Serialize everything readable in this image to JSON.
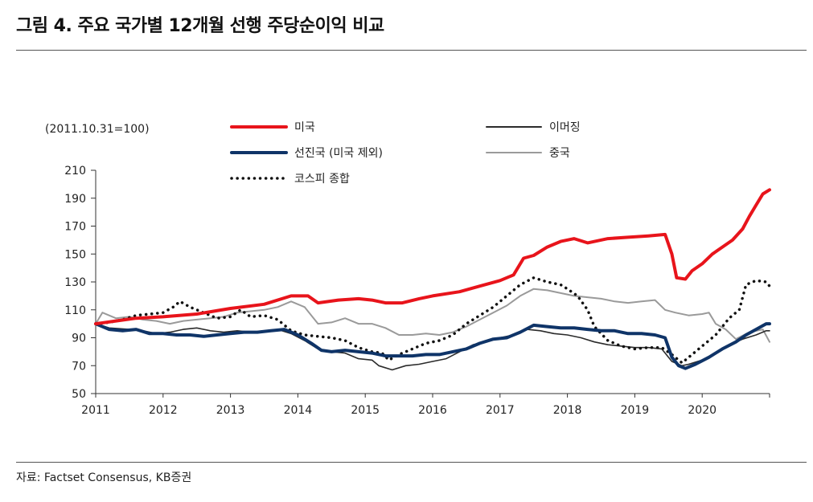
{
  "header": {
    "title": "그림 4. 주요 국가별 12개월 선행 주당순이익 비교"
  },
  "footer": {
    "source": "자료: Factset Consensus, KB증권"
  },
  "chart_data": {
    "type": "line",
    "unit_note": "(2011.10.31=100)",
    "ylim": [
      50,
      210
    ],
    "yticks": [
      50,
      70,
      90,
      110,
      130,
      150,
      170,
      190,
      210
    ],
    "xlim": [
      2011,
      2021
    ],
    "xticks": [
      "2011",
      "2012",
      "2013",
      "2014",
      "2015",
      "2016",
      "2017",
      "2018",
      "2019",
      "2020"
    ],
    "series": [
      {
        "name": "미국",
        "color": "#e8141b",
        "style": "solid",
        "width": 4,
        "points": [
          [
            2011.0,
            100
          ],
          [
            2011.3,
            102
          ],
          [
            2011.6,
            104
          ],
          [
            2012.0,
            105
          ],
          [
            2012.5,
            107
          ],
          [
            2013.0,
            111
          ],
          [
            2013.5,
            114
          ],
          [
            2013.9,
            120
          ],
          [
            2014.15,
            120
          ],
          [
            2014.3,
            115
          ],
          [
            2014.6,
            117
          ],
          [
            2014.9,
            118
          ],
          [
            2015.1,
            117
          ],
          [
            2015.3,
            115
          ],
          [
            2015.55,
            115
          ],
          [
            2015.8,
            118
          ],
          [
            2016.0,
            120
          ],
          [
            2016.4,
            123
          ],
          [
            2016.7,
            127
          ],
          [
            2017.0,
            131
          ],
          [
            2017.2,
            135
          ],
          [
            2017.35,
            147
          ],
          [
            2017.5,
            149
          ],
          [
            2017.7,
            155
          ],
          [
            2017.9,
            159
          ],
          [
            2018.1,
            161
          ],
          [
            2018.3,
            158
          ],
          [
            2018.6,
            161
          ],
          [
            2018.9,
            162
          ],
          [
            2019.2,
            163
          ],
          [
            2019.45,
            164
          ],
          [
            2019.55,
            150
          ],
          [
            2019.62,
            133
          ],
          [
            2019.75,
            132
          ],
          [
            2019.85,
            138
          ],
          [
            2020.0,
            143
          ],
          [
            2020.15,
            150
          ],
          [
            2020.3,
            155
          ],
          [
            2020.45,
            160
          ],
          [
            2020.6,
            168
          ],
          [
            2020.7,
            177
          ],
          [
            2020.8,
            185
          ],
          [
            2020.9,
            193
          ],
          [
            2021.0,
            196
          ]
        ]
      },
      {
        "name": "이머징",
        "color": "#2b2b2b",
        "style": "solid",
        "width": 1.6,
        "points": [
          [
            2011.0,
            100
          ],
          [
            2011.2,
            97
          ],
          [
            2011.5,
            96
          ],
          [
            2011.7,
            95
          ],
          [
            2011.9,
            93
          ],
          [
            2012.1,
            94
          ],
          [
            2012.3,
            96
          ],
          [
            2012.5,
            97
          ],
          [
            2012.7,
            95
          ],
          [
            2012.9,
            94
          ],
          [
            2013.1,
            95
          ],
          [
            2013.3,
            94
          ],
          [
            2013.5,
            95
          ],
          [
            2013.7,
            96
          ],
          [
            2013.9,
            93
          ],
          [
            2014.1,
            88
          ],
          [
            2014.3,
            82
          ],
          [
            2014.5,
            80
          ],
          [
            2014.7,
            79
          ],
          [
            2014.9,
            75
          ],
          [
            2015.1,
            74
          ],
          [
            2015.2,
            70
          ],
          [
            2015.4,
            67
          ],
          [
            2015.6,
            70
          ],
          [
            2015.8,
            71
          ],
          [
            2016.0,
            73
          ],
          [
            2016.2,
            75
          ],
          [
            2016.4,
            80
          ],
          [
            2016.6,
            85
          ],
          [
            2016.8,
            87
          ],
          [
            2017.0,
            90
          ],
          [
            2017.2,
            92
          ],
          [
            2017.4,
            96
          ],
          [
            2017.6,
            95
          ],
          [
            2017.8,
            93
          ],
          [
            2018.0,
            92
          ],
          [
            2018.2,
            90
          ],
          [
            2018.4,
            87
          ],
          [
            2018.6,
            85
          ],
          [
            2018.8,
            84
          ],
          [
            2019.0,
            83
          ],
          [
            2019.2,
            83
          ],
          [
            2019.4,
            82
          ],
          [
            2019.55,
            73
          ],
          [
            2019.7,
            70
          ],
          [
            2019.8,
            71
          ],
          [
            2020.0,
            74
          ],
          [
            2020.2,
            79
          ],
          [
            2020.4,
            85
          ],
          [
            2020.6,
            89
          ],
          [
            2020.8,
            92
          ],
          [
            2020.95,
            95
          ],
          [
            2021.0,
            95
          ]
        ]
      },
      {
        "name": "선진국 (미국 제외)",
        "color": "#0f3468",
        "style": "solid",
        "width": 4,
        "points": [
          [
            2011.0,
            100
          ],
          [
            2011.2,
            96
          ],
          [
            2011.4,
            95
          ],
          [
            2011.6,
            96
          ],
          [
            2011.8,
            93
          ],
          [
            2012.0,
            93
          ],
          [
            2012.2,
            92
          ],
          [
            2012.4,
            92
          ],
          [
            2012.6,
            91
          ],
          [
            2012.8,
            92
          ],
          [
            2013.0,
            93
          ],
          [
            2013.2,
            94
          ],
          [
            2013.4,
            94
          ],
          [
            2013.6,
            95
          ],
          [
            2013.8,
            96
          ],
          [
            2014.0,
            92
          ],
          [
            2014.2,
            86
          ],
          [
            2014.35,
            81
          ],
          [
            2014.5,
            80
          ],
          [
            2014.7,
            81
          ],
          [
            2014.9,
            80
          ],
          [
            2015.1,
            79
          ],
          [
            2015.3,
            77
          ],
          [
            2015.5,
            77
          ],
          [
            2015.7,
            77
          ],
          [
            2015.9,
            78
          ],
          [
            2016.1,
            78
          ],
          [
            2016.3,
            80
          ],
          [
            2016.5,
            82
          ],
          [
            2016.7,
            86
          ],
          [
            2016.9,
            89
          ],
          [
            2017.1,
            90
          ],
          [
            2017.3,
            94
          ],
          [
            2017.5,
            99
          ],
          [
            2017.7,
            98
          ],
          [
            2017.9,
            97
          ],
          [
            2018.1,
            97
          ],
          [
            2018.3,
            96
          ],
          [
            2018.5,
            95
          ],
          [
            2018.7,
            95
          ],
          [
            2018.9,
            93
          ],
          [
            2019.1,
            93
          ],
          [
            2019.3,
            92
          ],
          [
            2019.45,
            90
          ],
          [
            2019.55,
            76
          ],
          [
            2019.65,
            70
          ],
          [
            2019.75,
            68
          ],
          [
            2019.9,
            71
          ],
          [
            2020.1,
            76
          ],
          [
            2020.3,
            82
          ],
          [
            2020.5,
            87
          ],
          [
            2020.65,
            92
          ],
          [
            2020.8,
            96
          ],
          [
            2020.95,
            100
          ],
          [
            2021.0,
            100
          ]
        ]
      },
      {
        "name": "중국",
        "color": "#9a9a9a",
        "style": "solid",
        "width": 2,
        "points": [
          [
            2011.0,
            100
          ],
          [
            2011.1,
            108
          ],
          [
            2011.3,
            104
          ],
          [
            2011.5,
            105
          ],
          [
            2011.7,
            103
          ],
          [
            2011.9,
            102
          ],
          [
            2012.1,
            100
          ],
          [
            2012.3,
            102
          ],
          [
            2012.5,
            103
          ],
          [
            2012.7,
            104
          ],
          [
            2012.9,
            105
          ],
          [
            2013.1,
            108
          ],
          [
            2013.3,
            109
          ],
          [
            2013.5,
            110
          ],
          [
            2013.7,
            112
          ],
          [
            2013.9,
            116
          ],
          [
            2014.1,
            112
          ],
          [
            2014.3,
            100
          ],
          [
            2014.5,
            101
          ],
          [
            2014.7,
            104
          ],
          [
            2014.9,
            100
          ],
          [
            2015.1,
            100
          ],
          [
            2015.3,
            97
          ],
          [
            2015.5,
            92
          ],
          [
            2015.7,
            92
          ],
          [
            2015.9,
            93
          ],
          [
            2016.1,
            92
          ],
          [
            2016.3,
            94
          ],
          [
            2016.5,
            98
          ],
          [
            2016.7,
            103
          ],
          [
            2016.9,
            108
          ],
          [
            2017.1,
            113
          ],
          [
            2017.3,
            120
          ],
          [
            2017.5,
            125
          ],
          [
            2017.7,
            124
          ],
          [
            2017.9,
            122
          ],
          [
            2018.1,
            120
          ],
          [
            2018.3,
            119
          ],
          [
            2018.5,
            118
          ],
          [
            2018.7,
            116
          ],
          [
            2018.9,
            115
          ],
          [
            2019.1,
            116
          ],
          [
            2019.3,
            117
          ],
          [
            2019.45,
            110
          ],
          [
            2019.6,
            108
          ],
          [
            2019.8,
            106
          ],
          [
            2020.0,
            107
          ],
          [
            2020.1,
            108
          ],
          [
            2020.2,
            100
          ],
          [
            2020.35,
            96
          ],
          [
            2020.5,
            89
          ],
          [
            2020.7,
            94
          ],
          [
            2020.9,
            96
          ],
          [
            2021.0,
            87
          ]
        ]
      },
      {
        "name": "코스피 종합",
        "color": "#111111",
        "style": "dotted",
        "width": 3.5,
        "points": [
          [
            2011.0,
            100
          ],
          [
            2011.2,
            101
          ],
          [
            2011.4,
            103
          ],
          [
            2011.6,
            106
          ],
          [
            2011.8,
            107
          ],
          [
            2012.0,
            108
          ],
          [
            2012.15,
            112
          ],
          [
            2012.25,
            116
          ],
          [
            2012.4,
            112
          ],
          [
            2012.6,
            108
          ],
          [
            2012.8,
            104
          ],
          [
            2013.0,
            105
          ],
          [
            2013.15,
            110
          ],
          [
            2013.3,
            105
          ],
          [
            2013.5,
            106
          ],
          [
            2013.7,
            103
          ],
          [
            2013.9,
            95
          ],
          [
            2014.1,
            92
          ],
          [
            2014.3,
            91
          ],
          [
            2014.5,
            90
          ],
          [
            2014.7,
            88
          ],
          [
            2014.9,
            83
          ],
          [
            2015.1,
            80
          ],
          [
            2015.25,
            79
          ],
          [
            2015.35,
            74
          ],
          [
            2015.5,
            78
          ],
          [
            2015.7,
            82
          ],
          [
            2015.9,
            86
          ],
          [
            2016.1,
            88
          ],
          [
            2016.3,
            92
          ],
          [
            2016.5,
            100
          ],
          [
            2016.7,
            106
          ],
          [
            2016.9,
            112
          ],
          [
            2017.1,
            120
          ],
          [
            2017.3,
            128
          ],
          [
            2017.5,
            133
          ],
          [
            2017.7,
            130
          ],
          [
            2017.9,
            128
          ],
          [
            2018.0,
            125
          ],
          [
            2018.15,
            120
          ],
          [
            2018.3,
            110
          ],
          [
            2018.4,
            98
          ],
          [
            2018.6,
            88
          ],
          [
            2018.8,
            84
          ],
          [
            2019.0,
            82
          ],
          [
            2019.2,
            83
          ],
          [
            2019.4,
            83
          ],
          [
            2019.55,
            78
          ],
          [
            2019.7,
            72
          ],
          [
            2019.85,
            78
          ],
          [
            2020.0,
            84
          ],
          [
            2020.2,
            92
          ],
          [
            2020.4,
            104
          ],
          [
            2020.55,
            110
          ],
          [
            2020.65,
            128
          ],
          [
            2020.8,
            131
          ],
          [
            2020.95,
            130
          ],
          [
            2021.0,
            127
          ]
        ]
      }
    ]
  }
}
